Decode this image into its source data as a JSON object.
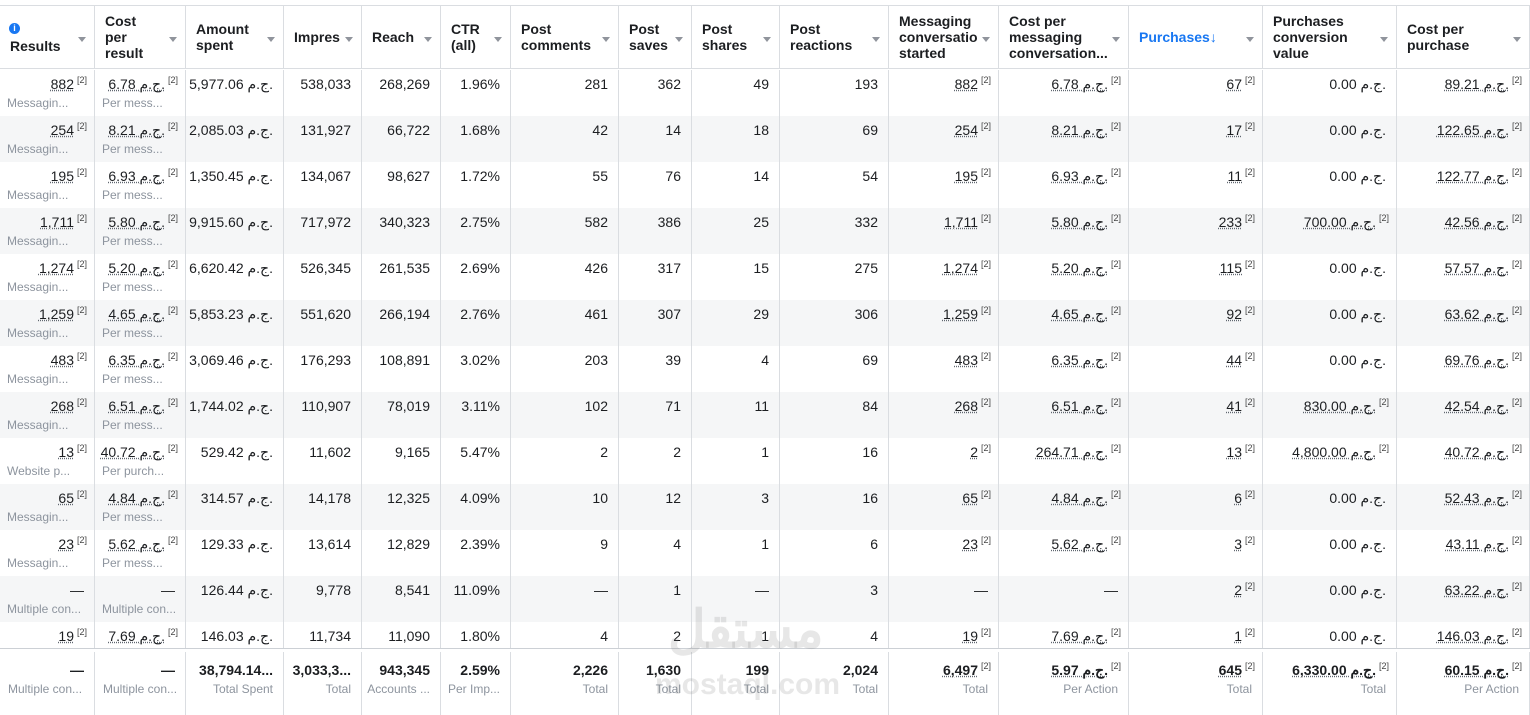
{
  "table": {
    "headers": [
      "Results",
      "Cost per result",
      "Amount spent",
      "Impres",
      "Reach",
      "CTR (all)",
      "Post comments",
      "Post saves",
      "Post shares",
      "Post reactions",
      "Messaging conversatio started",
      "Cost per messaging conversation...",
      "Purchases↓",
      "Purchases conversion value",
      "Cost per purchase"
    ],
    "sorted_column": 12,
    "rows": [
      [
        {
          "t": "882",
          "n": "[2]",
          "s": "Messagin..."
        },
        {
          "t": "6.78 ج.م.",
          "n": "[2]",
          "s": "Per mess..."
        },
        "5,977.06 ج.م.",
        "538,033",
        "268,269",
        "1.96%",
        "281",
        "362",
        "49",
        "193",
        {
          "t": "882",
          "n": "[2]"
        },
        {
          "t": "6.78 ج.م.",
          "n": "[2]"
        },
        {
          "t": "67",
          "n": "[2]"
        },
        "0.00 ج.م.",
        {
          "t": "89.21 ج.م.",
          "n": "[2]"
        }
      ],
      [
        {
          "t": "254",
          "n": "[2]",
          "s": "Messagin..."
        },
        {
          "t": "8.21 ج.م.",
          "n": "[2]",
          "s": "Per mess..."
        },
        "2,085.03 ج.م.",
        "131,927",
        "66,722",
        "1.68%",
        "42",
        "14",
        "18",
        "69",
        {
          "t": "254",
          "n": "[2]"
        },
        {
          "t": "8.21 ج.م.",
          "n": "[2]"
        },
        {
          "t": "17",
          "n": "[2]"
        },
        "0.00 ج.م.",
        {
          "t": "122.65 ج.م.",
          "n": "[2]"
        }
      ],
      [
        {
          "t": "195",
          "n": "[2]",
          "s": "Messagin..."
        },
        {
          "t": "6.93 ج.م.",
          "n": "[2]",
          "s": "Per mess..."
        },
        "1,350.45 ج.م.",
        "134,067",
        "98,627",
        "1.72%",
        "55",
        "76",
        "14",
        "54",
        {
          "t": "195",
          "n": "[2]"
        },
        {
          "t": "6.93 ج.م.",
          "n": "[2]"
        },
        {
          "t": "11",
          "n": "[2]"
        },
        "0.00 ج.م.",
        {
          "t": "122.77 ج.م.",
          "n": "[2]"
        }
      ],
      [
        {
          "t": "1,711",
          "n": "[2]",
          "s": "Messagin..."
        },
        {
          "t": "5.80 ج.م.",
          "n": "[2]",
          "s": "Per mess..."
        },
        "9,915.60 ج.م.",
        "717,972",
        "340,323",
        "2.75%",
        "582",
        "386",
        "25",
        "332",
        {
          "t": "1,711",
          "n": "[2]"
        },
        {
          "t": "5.80 ج.م.",
          "n": "[2]"
        },
        {
          "t": "233",
          "n": "[2]"
        },
        {
          "t": "700.00 ج.م.",
          "n": "[2]"
        },
        {
          "t": "42.56 ج.م.",
          "n": "[2]"
        }
      ],
      [
        {
          "t": "1,274",
          "n": "[2]",
          "s": "Messagin..."
        },
        {
          "t": "5.20 ج.م.",
          "n": "[2]",
          "s": "Per mess..."
        },
        "6,620.42 ج.م.",
        "526,345",
        "261,535",
        "2.69%",
        "426",
        "317",
        "15",
        "275",
        {
          "t": "1,274",
          "n": "[2]"
        },
        {
          "t": "5.20 ج.م.",
          "n": "[2]"
        },
        {
          "t": "115",
          "n": "[2]"
        },
        "0.00 ج.م.",
        {
          "t": "57.57 ج.م.",
          "n": "[2]"
        }
      ],
      [
        {
          "t": "1,259",
          "n": "[2]",
          "s": "Messagin..."
        },
        {
          "t": "4.65 ج.م.",
          "n": "[2]",
          "s": "Per mess..."
        },
        "5,853.23 ج.م.",
        "551,620",
        "266,194",
        "2.76%",
        "461",
        "307",
        "29",
        "306",
        {
          "t": "1,259",
          "n": "[2]"
        },
        {
          "t": "4.65 ج.م.",
          "n": "[2]"
        },
        {
          "t": "92",
          "n": "[2]"
        },
        "0.00 ج.م.",
        {
          "t": "63.62 ج.م.",
          "n": "[2]"
        }
      ],
      [
        {
          "t": "483",
          "n": "[2]",
          "s": "Messagin..."
        },
        {
          "t": "6.35 ج.م.",
          "n": "[2]",
          "s": "Per mess..."
        },
        "3,069.46 ج.م.",
        "176,293",
        "108,891",
        "3.02%",
        "203",
        "39",
        "4",
        "69",
        {
          "t": "483",
          "n": "[2]"
        },
        {
          "t": "6.35 ج.م.",
          "n": "[2]"
        },
        {
          "t": "44",
          "n": "[2]"
        },
        "0.00 ج.م.",
        {
          "t": "69.76 ج.م.",
          "n": "[2]"
        }
      ],
      [
        {
          "t": "268",
          "n": "[2]",
          "s": "Messagin..."
        },
        {
          "t": "6.51 ج.م.",
          "n": "[2]",
          "s": "Per mess..."
        },
        "1,744.02 ج.م.",
        "110,907",
        "78,019",
        "3.11%",
        "102",
        "71",
        "11",
        "84",
        {
          "t": "268",
          "n": "[2]"
        },
        {
          "t": "6.51 ج.م.",
          "n": "[2]"
        },
        {
          "t": "41",
          "n": "[2]"
        },
        {
          "t": "830.00 ج.م.",
          "n": "[2]"
        },
        {
          "t": "42.54 ج.م.",
          "n": "[2]"
        }
      ],
      [
        {
          "t": "13",
          "n": "[2]",
          "s": "Website p..."
        },
        {
          "t": "40.72 ج.م.",
          "n": "[2]",
          "s": "Per purch..."
        },
        "529.42 ج.م.",
        "11,602",
        "9,165",
        "5.47%",
        "2",
        "2",
        "1",
        "16",
        {
          "t": "2",
          "n": "[2]"
        },
        {
          "t": "264.71 ج.م.",
          "n": "[2]"
        },
        {
          "t": "13",
          "n": "[2]"
        },
        {
          "t": "4,800.00 ج.م.",
          "n": "[2]"
        },
        {
          "t": "40.72 ج.م.",
          "n": "[2]"
        }
      ],
      [
        {
          "t": "65",
          "n": "[2]",
          "s": "Messagin..."
        },
        {
          "t": "4.84 ج.م.",
          "n": "[2]",
          "s": "Per mess..."
        },
        "314.57 ج.م.",
        "14,178",
        "12,325",
        "4.09%",
        "10",
        "12",
        "3",
        "16",
        {
          "t": "65",
          "n": "[2]"
        },
        {
          "t": "4.84 ج.م.",
          "n": "[2]"
        },
        {
          "t": "6",
          "n": "[2]"
        },
        "0.00 ج.م.",
        {
          "t": "52.43 ج.م.",
          "n": "[2]"
        }
      ],
      [
        {
          "t": "23",
          "n": "[2]",
          "s": "Messagin..."
        },
        {
          "t": "5.62 ج.م.",
          "n": "[2]",
          "s": "Per mess..."
        },
        "129.33 ج.م.",
        "13,614",
        "12,829",
        "2.39%",
        "9",
        "4",
        "1",
        "6",
        {
          "t": "23",
          "n": "[2]"
        },
        {
          "t": "5.62 ج.م.",
          "n": "[2]"
        },
        {
          "t": "3",
          "n": "[2]"
        },
        "0.00 ج.م.",
        {
          "t": "43.11 ج.م.",
          "n": "[2]"
        }
      ],
      [
        {
          "t": "—",
          "s": "Multiple con..."
        },
        {
          "t": "—",
          "s": "Multiple con..."
        },
        "126.44 ج.م.",
        "9,778",
        "8,541",
        "11.09%",
        "—",
        "1",
        "—",
        "3",
        "—",
        "—",
        {
          "t": "2",
          "n": "[2]"
        },
        "0.00 ج.م.",
        {
          "t": "63.22 ج.م.",
          "n": "[2]"
        }
      ],
      [
        {
          "t": "19",
          "n": "[2]"
        },
        {
          "t": "7.69 ج.م.",
          "n": "[2]"
        },
        "146.03 ج.م.",
        "11,734",
        "11,090",
        "1.80%",
        "4",
        "2",
        "1",
        "4",
        {
          "t": "19",
          "n": "[2]"
        },
        {
          "t": "7.69 ج.م.",
          "n": "[2]"
        },
        {
          "t": "1",
          "n": "[2]"
        },
        "0.00 ج.م.",
        {
          "t": "146.03 ج.م.",
          "n": "[2]"
        }
      ]
    ],
    "totals": [
      {
        "t": "—",
        "s": "Multiple con..."
      },
      {
        "t": "—",
        "s": "Multiple con..."
      },
      {
        "t": "38,794.14...",
        "s": "Total Spent"
      },
      {
        "t": "3,033,3...",
        "s": "Total"
      },
      {
        "t": "943,345",
        "s": "Accounts ..."
      },
      {
        "t": "2.59%",
        "s": "Per Imp..."
      },
      {
        "t": "2,226",
        "s": "Total"
      },
      {
        "t": "1,630",
        "s": "Total"
      },
      {
        "t": "199",
        "s": "Total"
      },
      {
        "t": "2,024",
        "s": "Total"
      },
      {
        "t": "6,497",
        "n": "[2]",
        "s": "Total"
      },
      {
        "t": "5.97 ج.م.",
        "n": "[2]",
        "s": "Per Action"
      },
      {
        "t": "645",
        "n": "[2]",
        "s": "Total"
      },
      {
        "t": "6,330.00 ج.م.",
        "n": "[2]",
        "s": "Total"
      },
      {
        "t": "60.15 ج.م.",
        "n": "[2]",
        "s": "Per Action"
      }
    ]
  },
  "watermark": [
    "مستقل",
    "mostaql.com"
  ]
}
